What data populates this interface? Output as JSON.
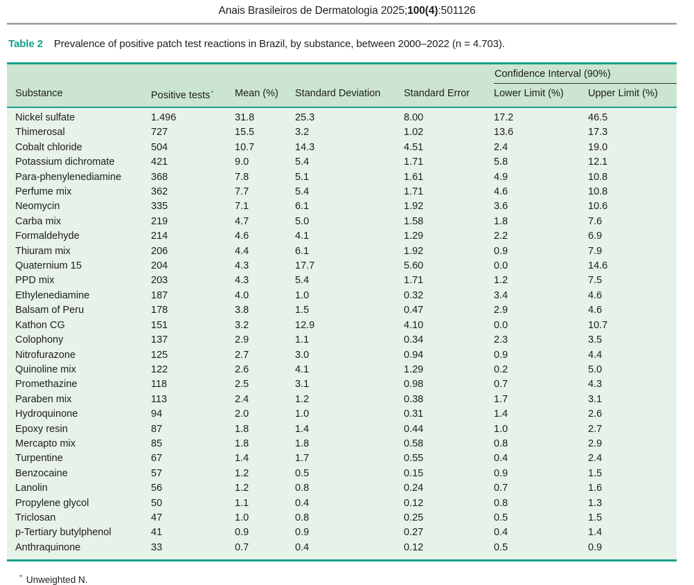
{
  "colors": {
    "accent": "#12a08b",
    "header_bg": "#cbe5d1",
    "body_bg": "#e7f2e9",
    "text": "#1d1d1b",
    "rule_gray": "#9c9c9c"
  },
  "journal": {
    "prefix": "Anais Brasileiros de Dermatologia 2025;",
    "volume_bold": "100(4)",
    "suffix": ":501126"
  },
  "caption": {
    "label": "Table 2",
    "text": "Prevalence of positive patch test reactions in Brazil, by substance, between 2000–2022 (n = 4.703)."
  },
  "table": {
    "group_header": "Confidence Interval (90%)",
    "columns": [
      {
        "label": "Substance"
      },
      {
        "label": "Positive tests",
        "marker": "*"
      },
      {
        "label": "Mean (%)"
      },
      {
        "label": "Standard Deviation"
      },
      {
        "label": "Standard Error"
      },
      {
        "label": "Lower Limit (%)"
      },
      {
        "label": "Upper Limit (%)"
      }
    ],
    "rows": [
      [
        "Nickel sulfate",
        "1.496",
        "31.8",
        "25.3",
        "8.00",
        "17.2",
        "46.5"
      ],
      [
        "Thimerosal",
        "727",
        "15.5",
        "3.2",
        "1.02",
        "13.6",
        "17.3"
      ],
      [
        "Cobalt chloride",
        "504",
        "10.7",
        "14.3",
        "4.51",
        "2.4",
        "19.0"
      ],
      [
        "Potassium dichromate",
        "421",
        "9.0",
        "5.4",
        "1.71",
        "5.8",
        "12.1"
      ],
      [
        "Para-phenylenediamine",
        "368",
        "7.8",
        "5.1",
        "1.61",
        "4.9",
        "10.8"
      ],
      [
        "Perfume mix",
        "362",
        "7.7",
        "5.4",
        "1.71",
        "4.6",
        "10.8"
      ],
      [
        "Neomycin",
        "335",
        "7.1",
        "6.1",
        "1.92",
        "3.6",
        "10.6"
      ],
      [
        "Carba mix",
        "219",
        "4.7",
        "5.0",
        "1.58",
        "1.8",
        "7.6"
      ],
      [
        "Formaldehyde",
        "214",
        "4.6",
        "4.1",
        "1.29",
        "2.2",
        "6.9"
      ],
      [
        "Thiuram mix",
        "206",
        "4.4",
        "6.1",
        "1.92",
        "0.9",
        "7.9"
      ],
      [
        "Quaternium 15",
        "204",
        "4.3",
        "17.7",
        "5.60",
        "0.0",
        "14.6"
      ],
      [
        "PPD mix",
        "203",
        "4.3",
        "5.4",
        "1.71",
        "1.2",
        "7.5"
      ],
      [
        "Ethylenediamine",
        "187",
        "4.0",
        "1.0",
        "0.32",
        "3.4",
        "4.6"
      ],
      [
        "Balsam of Peru",
        "178",
        "3.8",
        "1.5",
        "0.47",
        "2.9",
        "4.6"
      ],
      [
        "Kathon CG",
        "151",
        "3.2",
        "12.9",
        "4.10",
        "0.0",
        "10.7"
      ],
      [
        "Colophony",
        "137",
        "2.9",
        "1.1",
        "0.34",
        "2.3",
        "3.5"
      ],
      [
        "Nitrofurazone",
        "125",
        "2.7",
        "3.0",
        "0.94",
        "0.9",
        "4.4"
      ],
      [
        "Quinoline mix",
        "122",
        "2.6",
        "4.1",
        "1.29",
        "0.2",
        "5.0"
      ],
      [
        "Promethazine",
        "118",
        "2.5",
        "3.1",
        "0.98",
        "0.7",
        "4.3"
      ],
      [
        "Paraben mix",
        "113",
        "2.4",
        "1.2",
        "0.38",
        "1.7",
        "3.1"
      ],
      [
        "Hydroquinone",
        "94",
        "2.0",
        "1.0",
        "0.31",
        "1.4",
        "2.6"
      ],
      [
        "Epoxy resin",
        "87",
        "1.8",
        "1.4",
        "0.44",
        "1.0",
        "2.7"
      ],
      [
        "Mercapto mix",
        "85",
        "1.8",
        "1.8",
        "0.58",
        "0.8",
        "2.9"
      ],
      [
        "Turpentine",
        "67",
        "1.4",
        "1.7",
        "0.55",
        "0.4",
        "2.4"
      ],
      [
        "Benzocaine",
        "57",
        "1.2",
        "0.5",
        "0.15",
        "0.9",
        "1.5"
      ],
      [
        "Lanolin",
        "56",
        "1.2",
        "0.8",
        "0.24",
        "0.7",
        "1.6"
      ],
      [
        "Propylene glycol",
        "50",
        "1.1",
        "0.4",
        "0.12",
        "0.8",
        "1.3"
      ],
      [
        "Triclosan",
        "47",
        "1.0",
        "0.8",
        "0.25",
        "0.5",
        "1.5"
      ],
      [
        "p-Tertiary butylphenol",
        "41",
        "0.9",
        "0.9",
        "0.27",
        "0.4",
        "1.4"
      ],
      [
        "Anthraquinone",
        "33",
        "0.7",
        "0.4",
        "0.12",
        "0.5",
        "0.9"
      ]
    ],
    "footnote": {
      "marker": "*",
      "text": "Unweighted N."
    }
  }
}
